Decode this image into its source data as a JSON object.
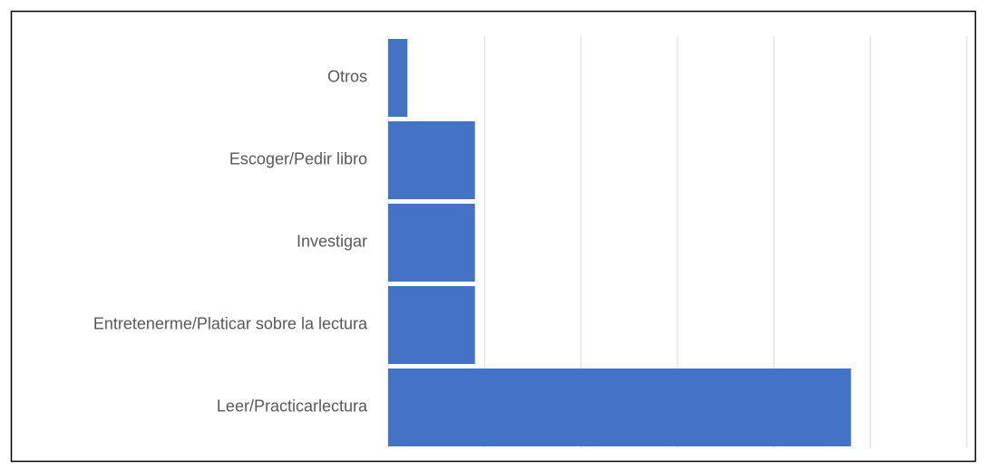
{
  "chart_data": {
    "type": "bar",
    "orientation": "horizontal",
    "categories": [
      "Otros",
      "Escoger/Pedir libro",
      "Investigar",
      "Entretenerme/Platicar sobre la lectura",
      "Leer/Practicarlectura"
    ],
    "values": [
      2,
      9,
      9,
      9,
      48
    ],
    "color": "#4472c4",
    "xlim": [
      0,
      60
    ],
    "xticks": [
      0,
      10,
      20,
      30,
      40,
      50,
      60
    ],
    "grid": true
  }
}
